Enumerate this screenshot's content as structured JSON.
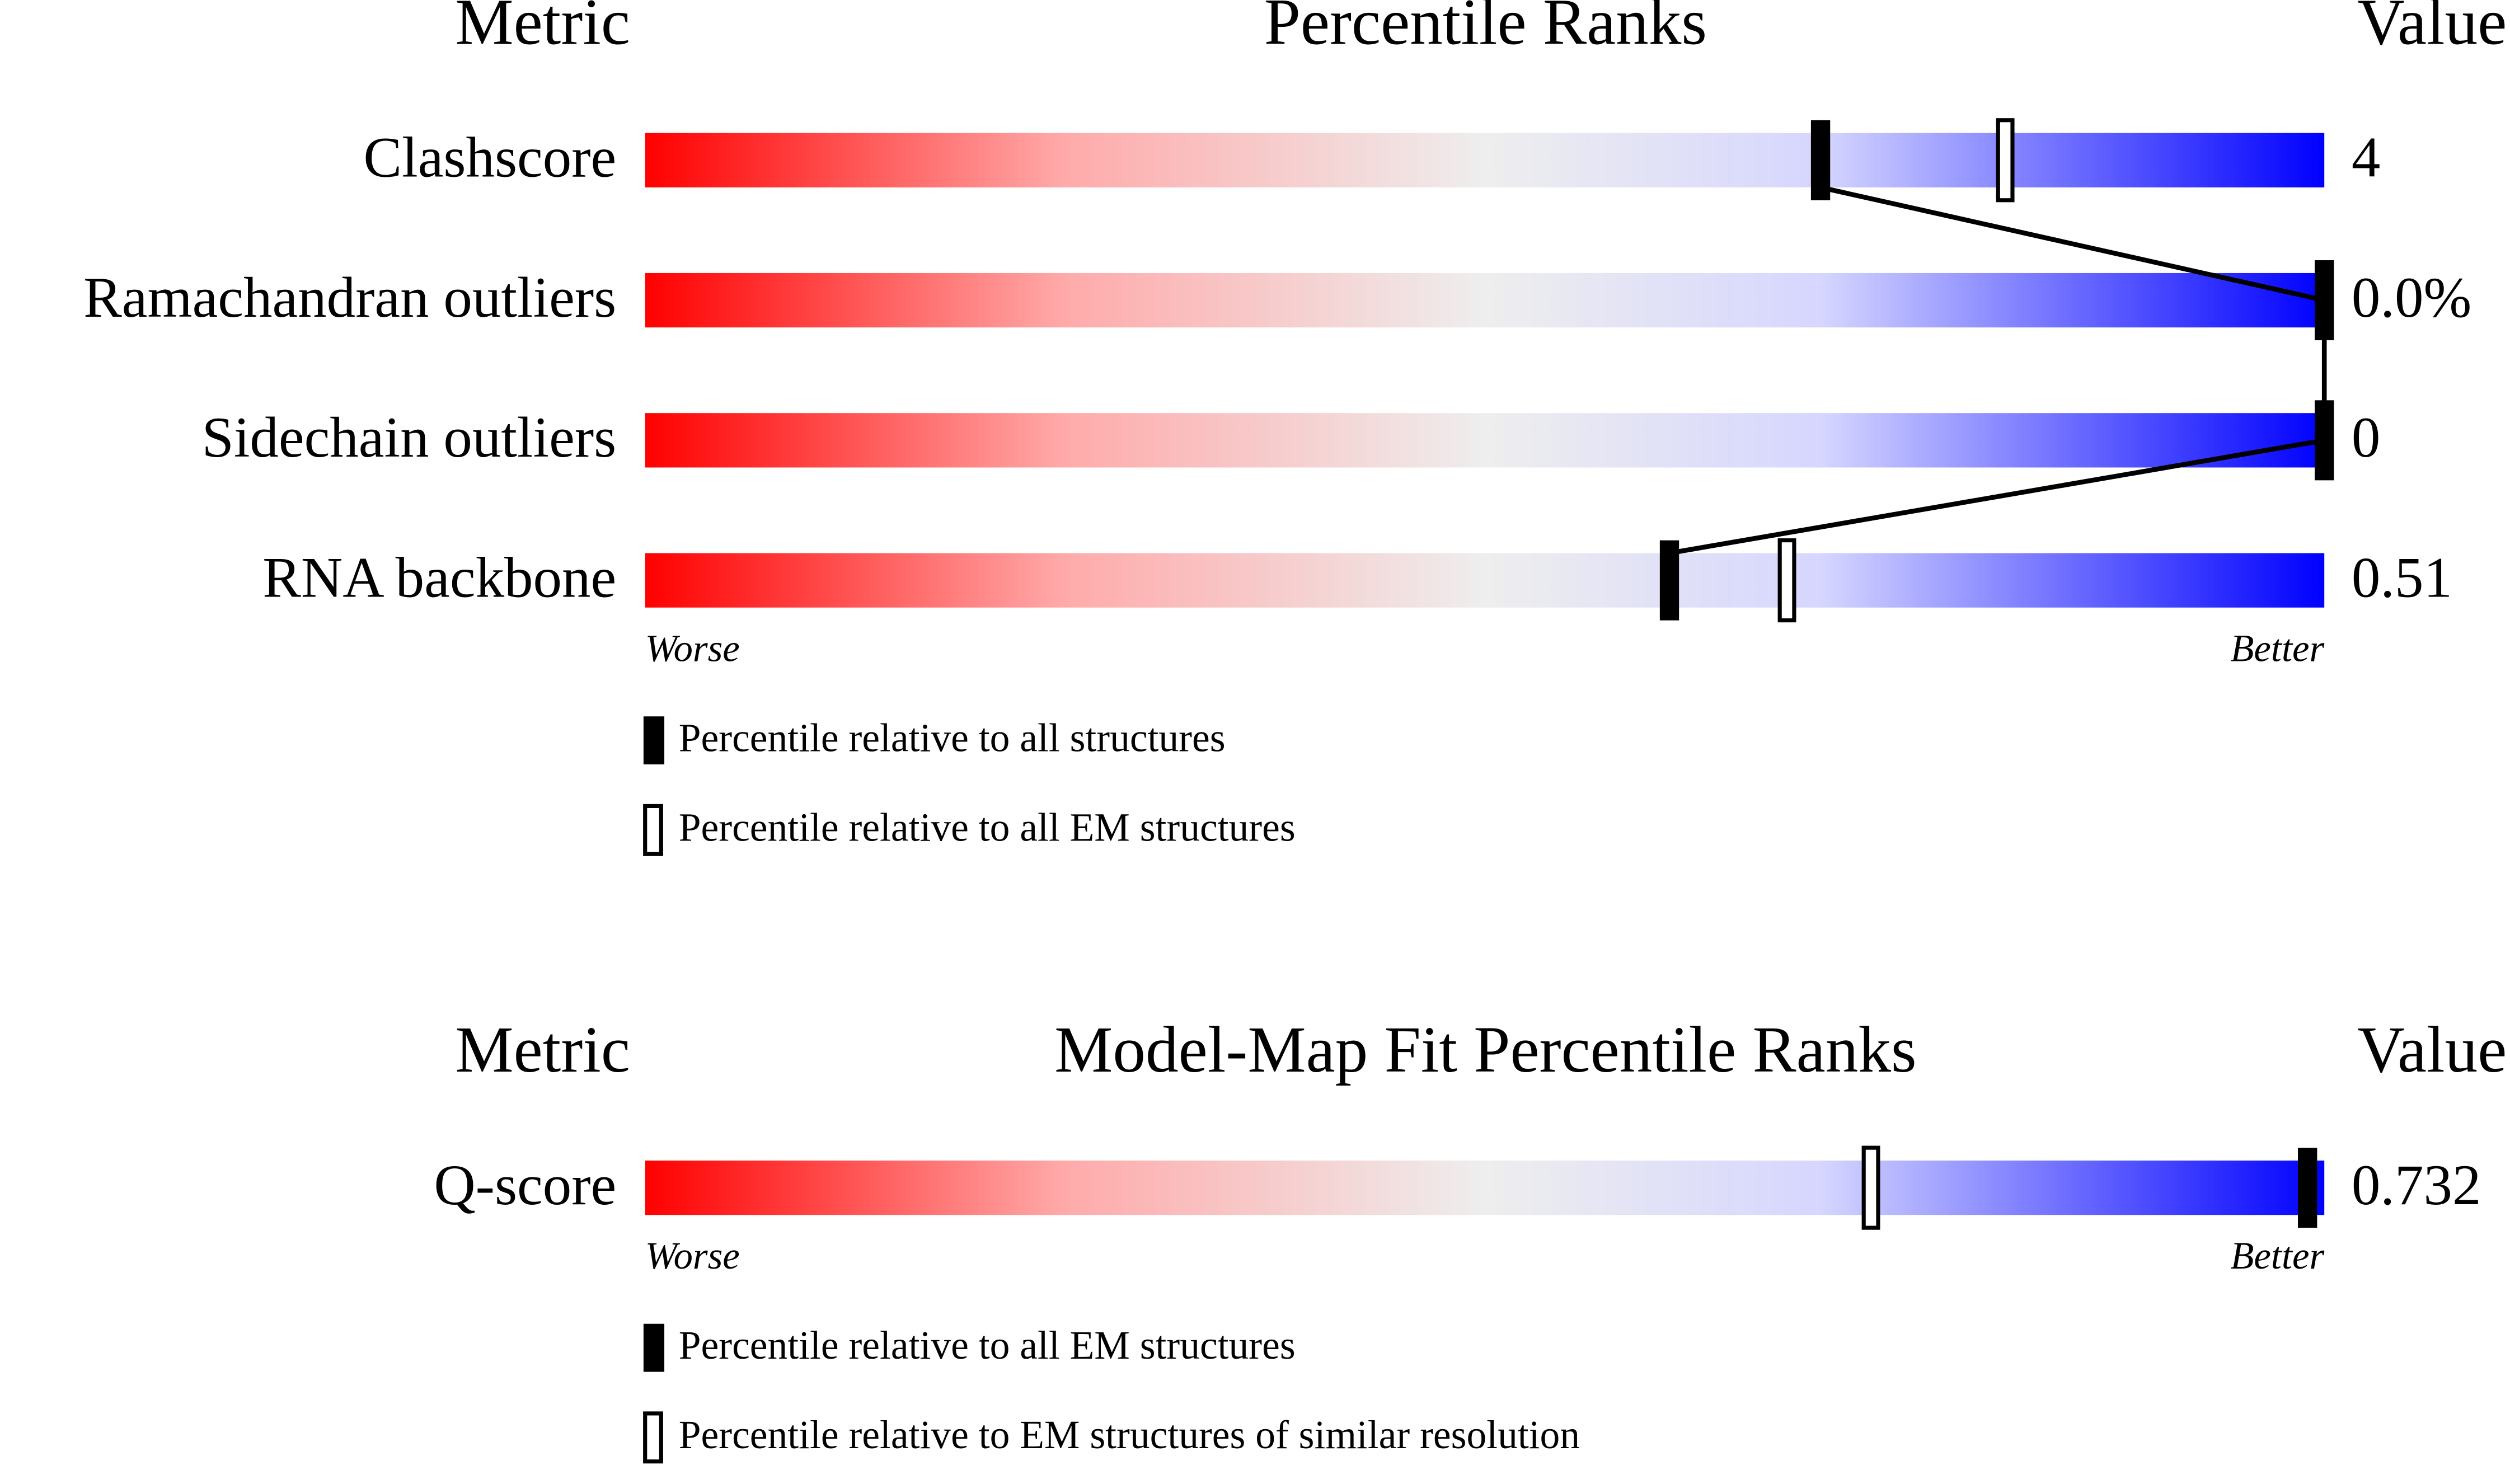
{
  "chart_data": [
    {
      "type": "slider",
      "metric_header": "Metric",
      "title": "Percentile Ranks",
      "value_header": "Value",
      "categories": [
        "Clashscore",
        "Ramachandran outliers",
        "Sidechain outliers",
        "RNA backbone"
      ],
      "metric_values": [
        "4",
        "0.0%",
        "0",
        "0.51"
      ],
      "xlim": [
        0,
        100
      ],
      "worse_label": "Worse",
      "better_label": "Better",
      "connect": true,
      "series": [
        {
          "name": "Percentile relative to all structures",
          "color": "#000000",
          "filled": true,
          "values": [
            70,
            100,
            100,
            61
          ]
        },
        {
          "name": "Percentile relative to all EM structures",
          "color": "#000000",
          "filled": false,
          "values": [
            81,
            null,
            null,
            68
          ]
        }
      ]
    },
    {
      "type": "slider",
      "metric_header": "Metric",
      "title": "Model-Map Fit Percentile Ranks",
      "value_header": "Value",
      "categories": [
        "Q-score"
      ],
      "metric_values": [
        "0.732"
      ],
      "xlim": [
        0,
        100
      ],
      "worse_label": "Worse",
      "better_label": "Better",
      "connect": true,
      "series": [
        {
          "name": "Percentile relative to all EM structures",
          "color": "#000000",
          "filled": true,
          "values": [
            99
          ]
        },
        {
          "name": "Percentile relative to EM structures of similar resolution",
          "color": "#000000",
          "filled": false,
          "values": [
            73
          ]
        }
      ]
    }
  ]
}
